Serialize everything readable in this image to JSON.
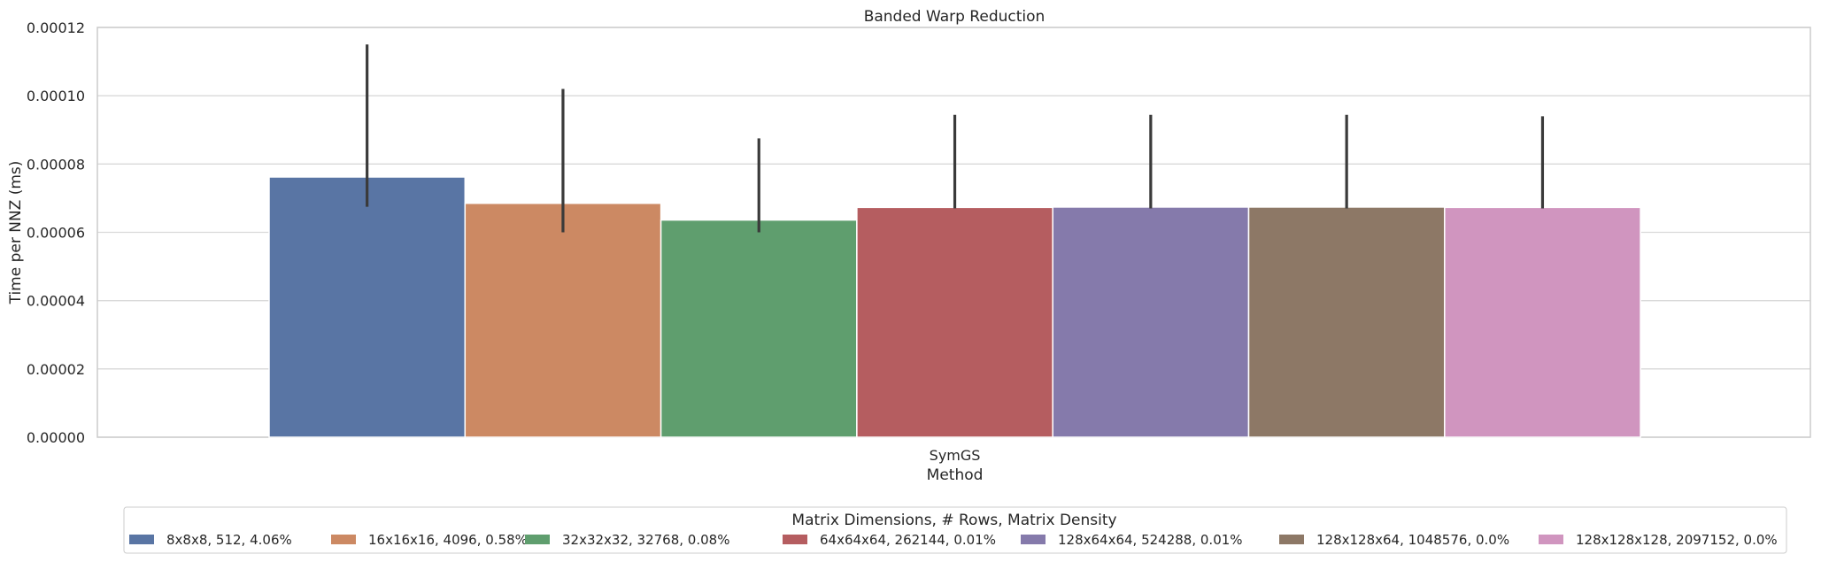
{
  "chart_data": {
    "type": "bar",
    "title": "Banded Warp Reduction",
    "xlabel": "Method",
    "ylabel": "Time per NNZ (ms)",
    "categories": [
      "SymGS"
    ],
    "ylim": [
      0,
      0.00012
    ],
    "yticks": [
      "0.00000",
      "0.00002",
      "0.00004",
      "0.00006",
      "0.00008",
      "0.00010",
      "0.00012"
    ],
    "ytick_values": [
      0,
      2e-05,
      4e-05,
      6e-05,
      8e-05,
      0.0001,
      0.00012
    ],
    "grid": "horizontal",
    "legend_title": "Matrix Dimensions, # Rows, Matrix Density",
    "legend_placement": "bottom-center",
    "series": [
      {
        "name": "8x8x8, 512, 4.06%",
        "color": "#5975a4",
        "values": [
          7.62e-05
        ],
        "err_low": [
          6.75e-05
        ],
        "err_high": [
          0.000115
        ]
      },
      {
        "name": "16x16x16, 4096, 0.58%",
        "color": "#cc8963",
        "values": [
          6.85e-05
        ],
        "err_low": [
          6e-05
        ],
        "err_high": [
          0.000102
        ]
      },
      {
        "name": "32x32x32, 32768, 0.08%",
        "color": "#5f9e6e",
        "values": [
          6.36e-05
        ],
        "err_low": [
          6e-05
        ],
        "err_high": [
          8.75e-05
        ]
      },
      {
        "name": "64x64x64, 262144, 0.01%",
        "color": "#b55d60",
        "values": [
          6.73e-05
        ],
        "err_low": [
          6.7e-05
        ],
        "err_high": [
          9.44e-05
        ]
      },
      {
        "name": "128x64x64, 524288, 0.01%",
        "color": "#857aab",
        "values": [
          6.74e-05
        ],
        "err_low": [
          6.7e-05
        ],
        "err_high": [
          9.44e-05
        ]
      },
      {
        "name": "128x128x64, 1048576, 0.0%",
        "color": "#8d7866",
        "values": [
          6.74e-05
        ],
        "err_low": [
          6.7e-05
        ],
        "err_high": [
          9.44e-05
        ]
      },
      {
        "name": "128x128x128, 2097152, 0.0%",
        "color": "#d095bf",
        "values": [
          6.73e-05
        ],
        "err_low": [
          6.7e-05
        ],
        "err_high": [
          9.4e-05
        ]
      }
    ]
  }
}
